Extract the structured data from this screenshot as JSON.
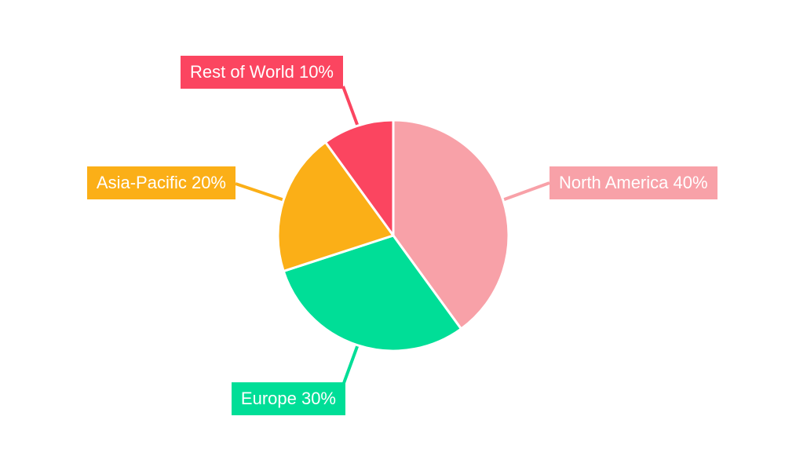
{
  "background_color": "#ffffff",
  "chart_data": {
    "type": "pie",
    "title": "",
    "unit": "%",
    "start_angle": "top",
    "direction": "clockwise",
    "slice_separator_color": "#ffffff",
    "label_style": "colored callout boxes with leader lines",
    "slices": [
      {
        "label": "North America",
        "value": 40,
        "display": "North America 40%",
        "color": "#F8A1A8"
      },
      {
        "label": "Europe",
        "value": 30,
        "display": "Europe 30%",
        "color": "#00DE97"
      },
      {
        "label": "Asia-Pacific",
        "value": 20,
        "display": "Asia-Pacific 20%",
        "color": "#FBAF17"
      },
      {
        "label": "Rest of World",
        "value": 10,
        "display": "Rest of World 10%",
        "color": "#FB4560"
      }
    ],
    "label_text_color": "#ffffff"
  }
}
